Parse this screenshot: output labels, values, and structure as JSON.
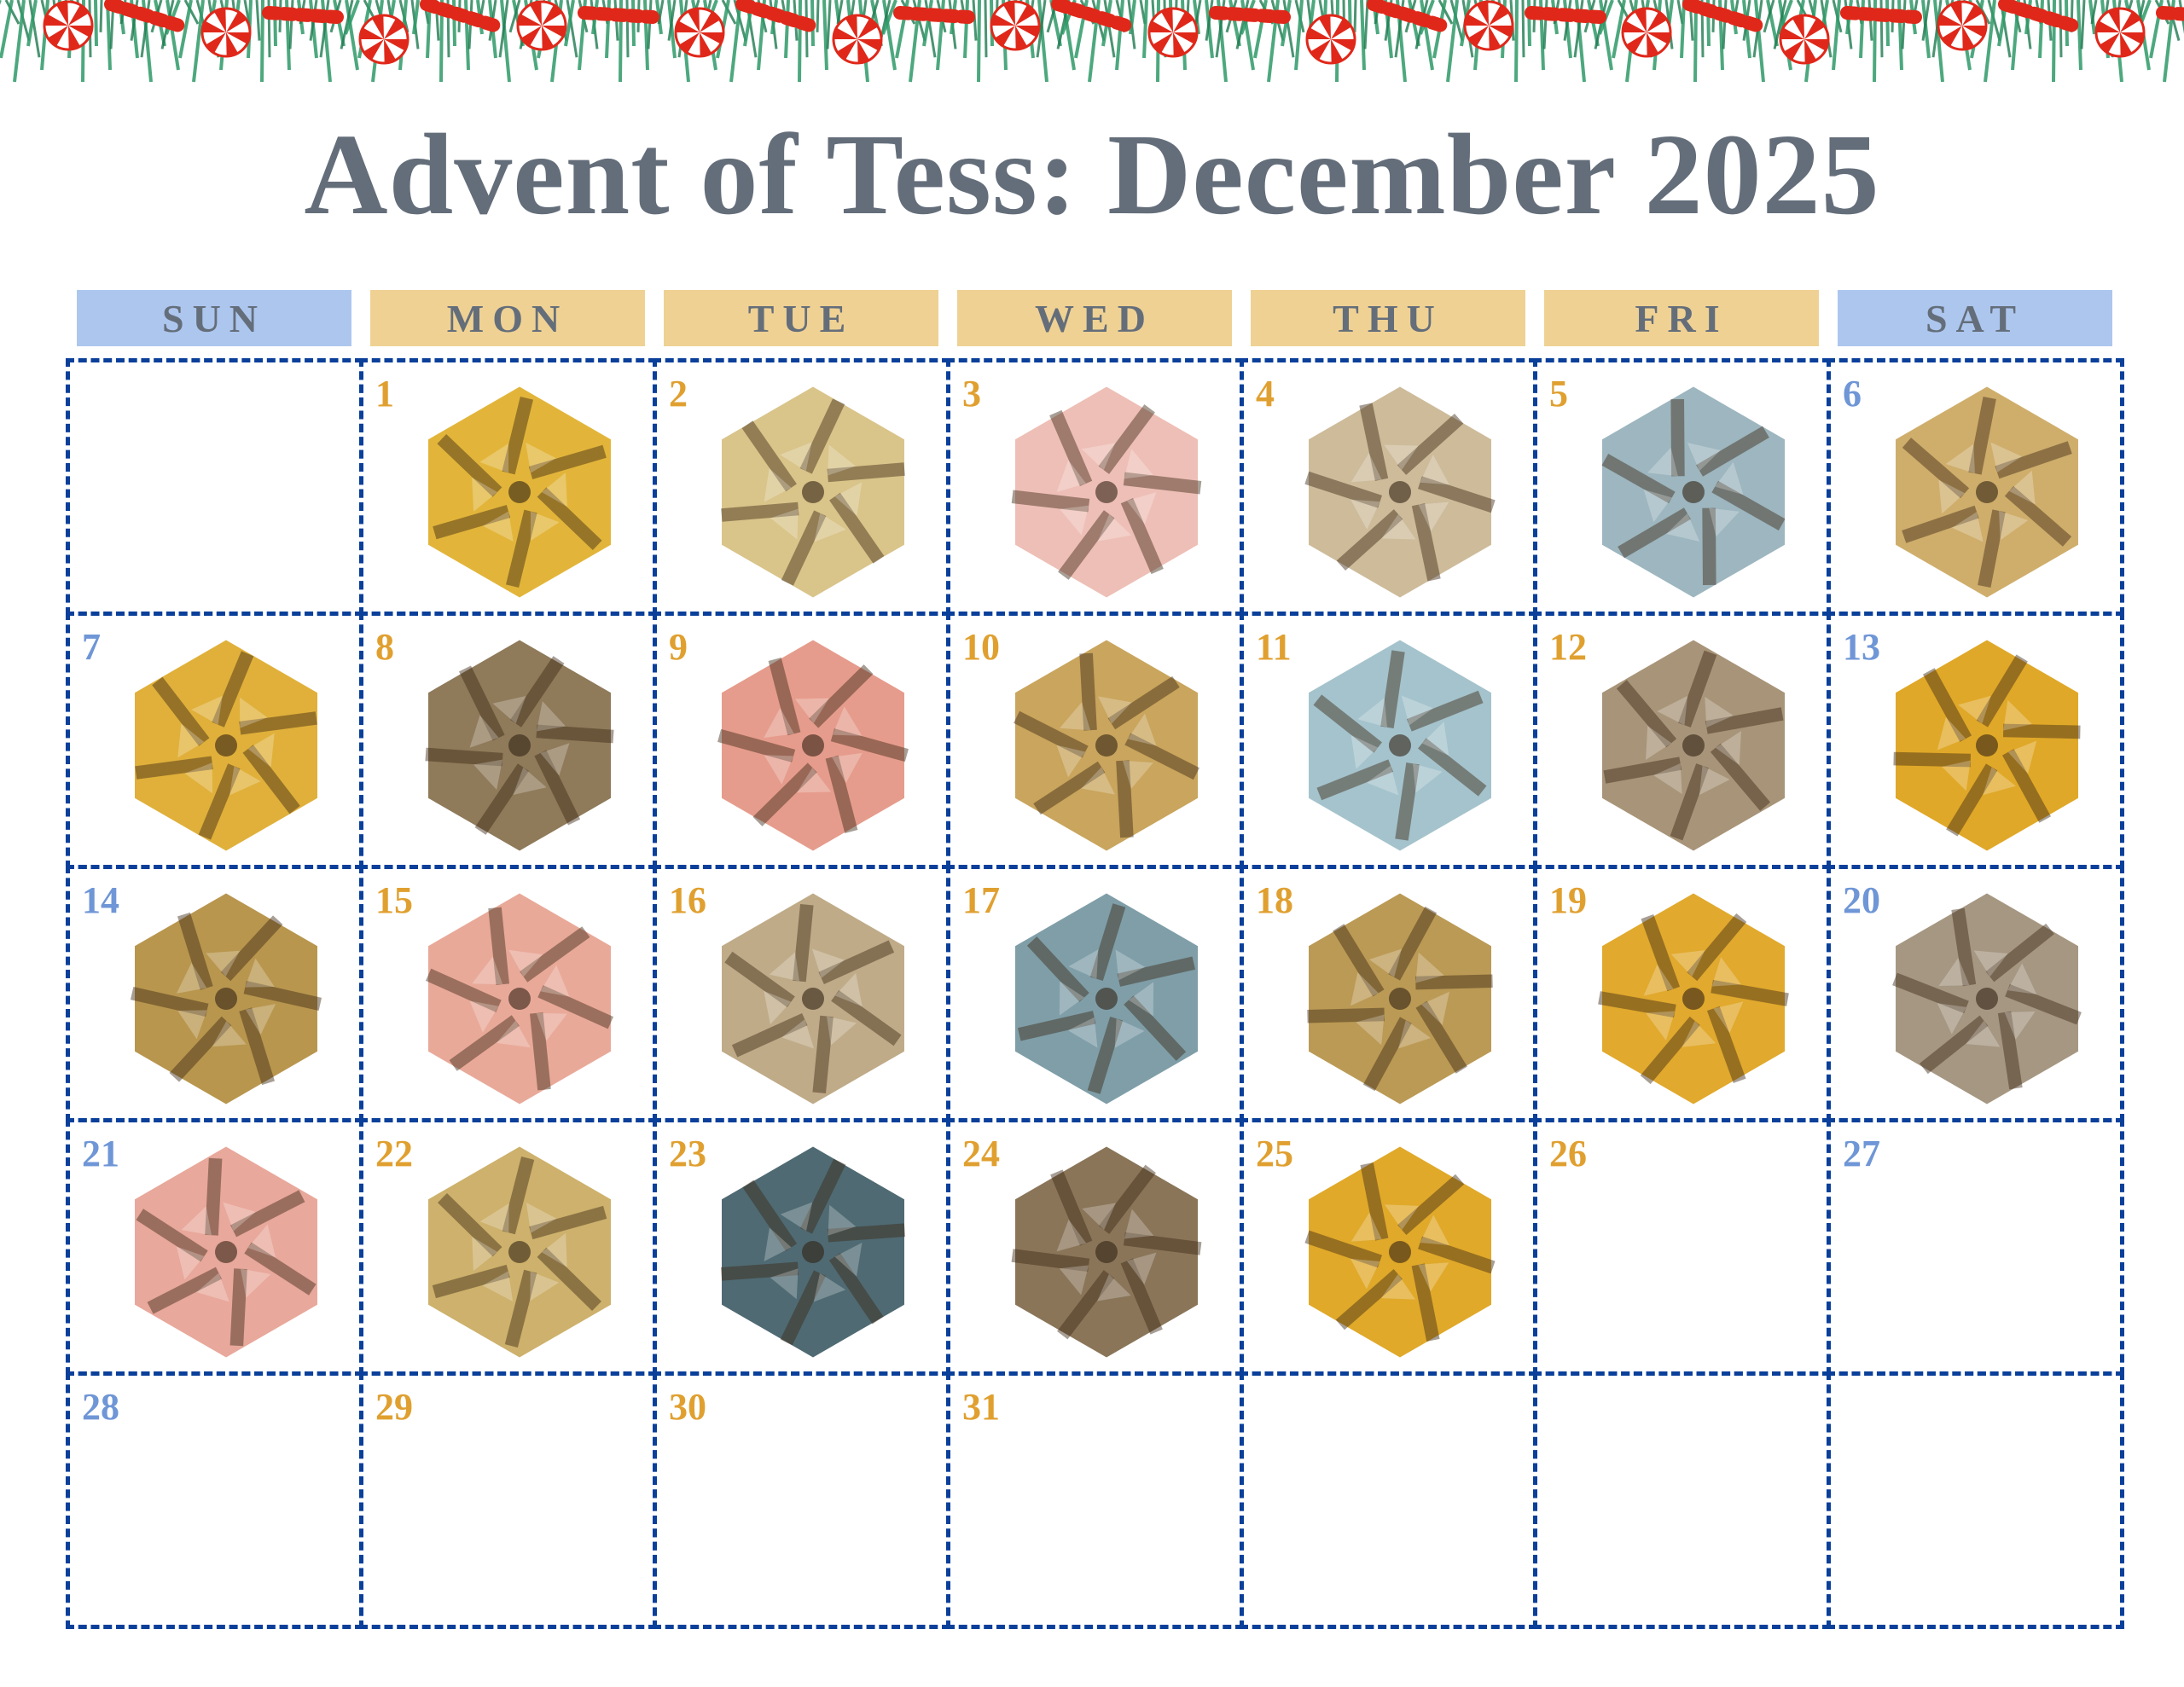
{
  "title": "Advent of Tess: December 2025",
  "colors": {
    "title": "#646e7a",
    "weekend_header": "#adc6ee",
    "weekday_header": "#efd194",
    "weekend_number": "#6f96d6",
    "weekday_number": "#e0a030",
    "grid_border": "#0a3f9a",
    "garland_green": "#2e9a68",
    "candy_red": "#e0281a"
  },
  "weekdays": [
    {
      "label": "SUN",
      "weekend": true
    },
    {
      "label": "MON",
      "weekend": false
    },
    {
      "label": "TUE",
      "weekend": false
    },
    {
      "label": "WED",
      "weekend": false
    },
    {
      "label": "THU",
      "weekend": false
    },
    {
      "label": "FRI",
      "weekend": false
    },
    {
      "label": "SAT",
      "weekend": true
    }
  ],
  "first_weekday_index": 1,
  "days": [
    {
      "day": "1",
      "tessellation_color": "#e2b53a"
    },
    {
      "day": "2",
      "tessellation_color": "#d9c48a"
    },
    {
      "day": "3",
      "tessellation_color": "#eebfb6"
    },
    {
      "day": "4",
      "tessellation_color": "#cdbb9a"
    },
    {
      "day": "5",
      "tessellation_color": "#9db6bf"
    },
    {
      "day": "6",
      "tessellation_color": "#cfae6c"
    },
    {
      "day": "7",
      "tessellation_color": "#e0b03a"
    },
    {
      "day": "8",
      "tessellation_color": "#8f7a5a"
    },
    {
      "day": "9",
      "tessellation_color": "#e69c8c"
    },
    {
      "day": "10",
      "tessellation_color": "#c9a55d"
    },
    {
      "day": "11",
      "tessellation_color": "#a5c3cc"
    },
    {
      "day": "12",
      "tessellation_color": "#a89478"
    },
    {
      "day": "13",
      "tessellation_color": "#e0a828"
    },
    {
      "day": "14",
      "tessellation_color": "#b8964e"
    },
    {
      "day": "15",
      "tessellation_color": "#e9a999"
    },
    {
      "day": "16",
      "tessellation_color": "#bfab88"
    },
    {
      "day": "17",
      "tessellation_color": "#7f9ea8"
    },
    {
      "day": "18",
      "tessellation_color": "#bb9a55"
    },
    {
      "day": "19",
      "tessellation_color": "#e1a92d"
    },
    {
      "day": "20",
      "tessellation_color": "#a69782"
    },
    {
      "day": "21",
      "tessellation_color": "#e8a89b"
    },
    {
      "day": "22",
      "tessellation_color": "#cdb16c"
    },
    {
      "day": "23",
      "tessellation_color": "#4f6a73"
    },
    {
      "day": "24",
      "tessellation_color": "#8a7559"
    },
    {
      "day": "25",
      "tessellation_color": "#e0a92a"
    },
    {
      "day": "26",
      "tessellation_color": null
    },
    {
      "day": "27",
      "tessellation_color": null
    },
    {
      "day": "28",
      "tessellation_color": null
    },
    {
      "day": "29",
      "tessellation_color": null
    },
    {
      "day": "30",
      "tessellation_color": null
    },
    {
      "day": "31",
      "tessellation_color": null
    }
  ]
}
